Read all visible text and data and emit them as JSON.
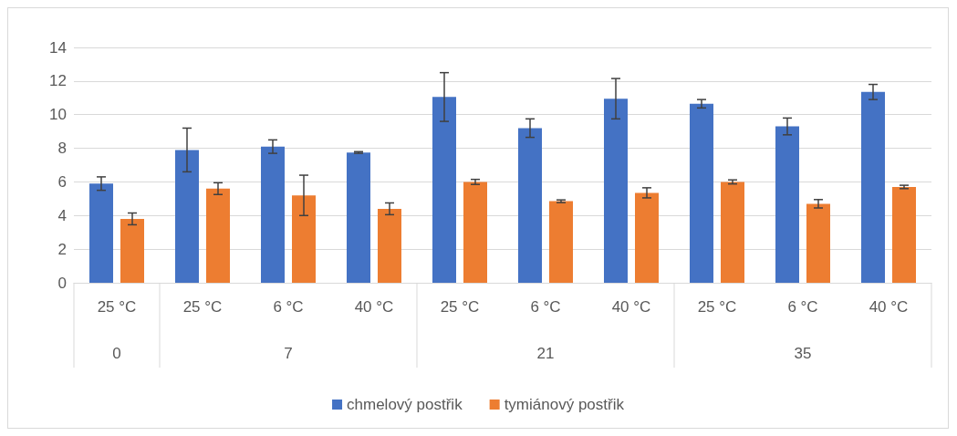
{
  "chart_data": {
    "type": "bar",
    "categories": [
      "25 °C",
      "25 °C",
      "6 °C",
      "40 °C",
      "25 °C",
      "6 °C",
      "40 °C",
      "25 °C",
      "6 °C",
      "40 °C"
    ],
    "series": [
      {
        "name": "chmelový postřik",
        "color": "#4472c4",
        "values": [
          5.9,
          7.9,
          8.1,
          7.75,
          11.05,
          9.2,
          10.95,
          10.65,
          9.3,
          11.35
        ],
        "errors": [
          0.4,
          1.3,
          0.4,
          0.05,
          1.45,
          0.55,
          1.2,
          0.25,
          0.5,
          0.45
        ]
      },
      {
        "name": "tymiánový postřik",
        "color": "#ed7d31",
        "values": [
          3.8,
          5.6,
          5.2,
          4.4,
          6.0,
          4.85,
          5.35,
          6.0,
          4.7,
          5.7
        ],
        "errors": [
          0.35,
          0.35,
          1.2,
          0.35,
          0.15,
          0.08,
          0.3,
          0.12,
          0.25,
          0.1
        ]
      }
    ],
    "annotations": [
      "0",
      "7",
      "21",
      "35"
    ],
    "ylim": [
      0,
      14
    ],
    "yticks": [
      0,
      2,
      4,
      6,
      8,
      10,
      12,
      14
    ],
    "grid": "y",
    "legend": "bottom"
  }
}
